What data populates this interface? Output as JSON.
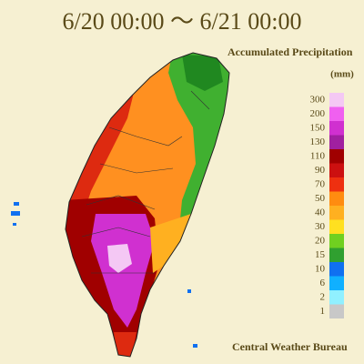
{
  "header": {
    "title": "6/20 00:00 ～ 6/21 00:00",
    "subtitle": "Accumulated Precipitation",
    "unit": "(mm)"
  },
  "legend": {
    "items": [
      {
        "label": 300,
        "color": "#f4c8f4"
      },
      {
        "label": 200,
        "color": "#f060f0"
      },
      {
        "label": 150,
        "color": "#d030d0"
      },
      {
        "label": 130,
        "color": "#a020a0"
      },
      {
        "label": 110,
        "color": "#a00000"
      },
      {
        "label": 90,
        "color": "#cc1010"
      },
      {
        "label": 70,
        "color": "#ee3010"
      },
      {
        "label": 50,
        "color": "#ff8c10"
      },
      {
        "label": 40,
        "color": "#ffb020"
      },
      {
        "label": 30,
        "color": "#ffe020"
      },
      {
        "label": 20,
        "color": "#70d020"
      },
      {
        "label": 15,
        "color": "#30a030"
      },
      {
        "label": 10,
        "color": "#1070f0"
      },
      {
        "label": 6,
        "color": "#10b0ff"
      },
      {
        "label": 2,
        "color": "#90f0ff"
      },
      {
        "label": 1,
        "color": "#c8c8c8"
      }
    ]
  },
  "footer": {
    "source": "Central Weather Bureau"
  }
}
